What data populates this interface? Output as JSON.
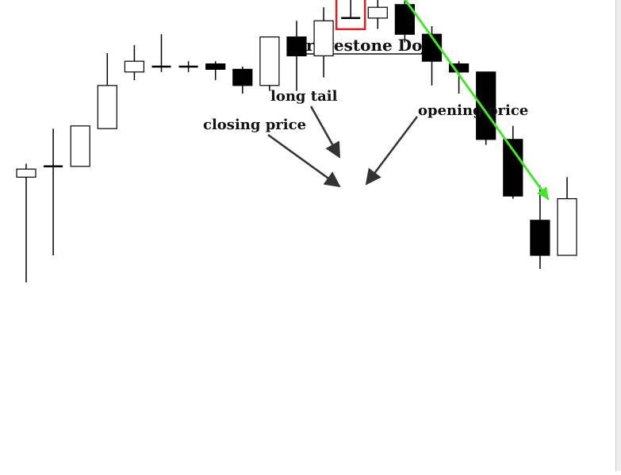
{
  "chart_data": {
    "type": "candlestick",
    "title": "Gravestone Doji",
    "annotations": [
      "long tail",
      "closing price",
      "opening price"
    ],
    "highlighted_candle_index": 12,
    "trend_arrow": {
      "from_candle_index": 14,
      "to_candle_index": 19,
      "direction": "down"
    },
    "candles": [
      {
        "open": 109,
        "close": 112,
        "high": 114,
        "low": 70
      },
      {
        "open": 113,
        "close": 113,
        "high": 127,
        "low": 80
      },
      {
        "open": 113,
        "close": 128,
        "high": 128,
        "low": 113
      },
      {
        "open": 127,
        "close": 143,
        "high": 155,
        "low": 127
      },
      {
        "open": 148,
        "close": 152,
        "high": 158,
        "low": 145
      },
      {
        "open": 150,
        "close": 150,
        "high": 162,
        "low": 148
      },
      {
        "open": 150,
        "close": 150,
        "high": 152,
        "low": 148
      },
      {
        "open": 151,
        "close": 149,
        "high": 152,
        "low": 145
      },
      {
        "open": 149,
        "close": 143,
        "high": 150,
        "low": 140
      },
      {
        "open": 143,
        "close": 161,
        "high": 161,
        "low": 141
      },
      {
        "open": 161,
        "close": 154,
        "high": 167,
        "low": 141
      },
      {
        "open": 154,
        "close": 167,
        "high": 172,
        "low": 146
      },
      {
        "open": 168,
        "close": 168,
        "high": 184,
        "low": 168
      },
      {
        "open": 168,
        "close": 172,
        "high": 176,
        "low": 164
      },
      {
        "open": 173,
        "close": 162,
        "high": 176,
        "low": 159
      },
      {
        "open": 162,
        "close": 152,
        "high": 165,
        "low": 143
      },
      {
        "open": 151,
        "close": 148,
        "high": 152,
        "low": 140
      },
      {
        "open": 148,
        "close": 123,
        "high": 148,
        "low": 121
      },
      {
        "open": 123,
        "close": 102,
        "high": 128,
        "low": 101
      },
      {
        "open": 93,
        "close": 80,
        "high": 106,
        "low": 75
      },
      {
        "open": 80,
        "close": 101,
        "high": 109,
        "low": 80
      }
    ]
  },
  "colors": {
    "bullish_fill": "#ffffff",
    "bearish_fill": "#000000",
    "stroke": "#000000",
    "highlight": "#e02020",
    "trend_arrow": "#44e62a",
    "pointer_arrow": "#333333"
  }
}
